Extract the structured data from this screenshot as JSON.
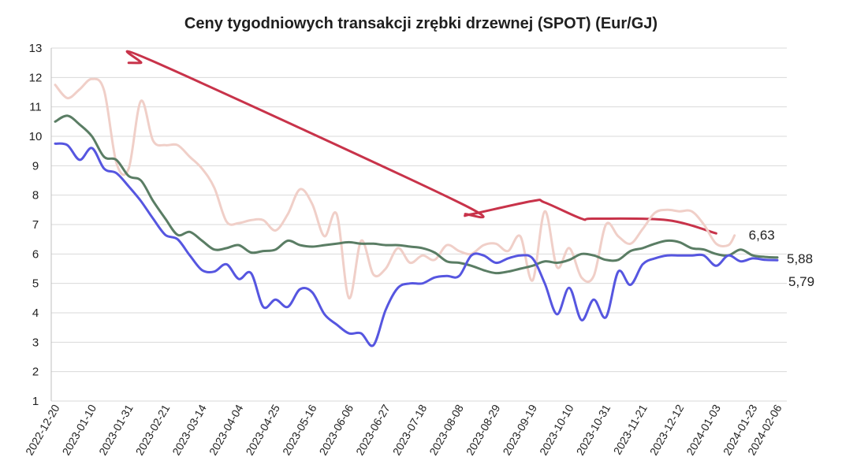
{
  "chart_data": {
    "type": "line",
    "title": "Ceny tygodniowych transakcji zrębki drzewnej (SPOT) (Eur/GJ)",
    "xlabel": "",
    "ylabel": "",
    "ylim": [
      1,
      13
    ],
    "yticks": [
      1,
      2,
      3,
      4,
      5,
      6,
      7,
      8,
      9,
      10,
      11,
      12,
      13
    ],
    "grid": true,
    "legend": "none",
    "x_tick_labels": [
      "2022-12-20",
      "2023-01-10",
      "2023-01-31",
      "2023-02-21",
      "2023-03-14",
      "2023-04-04",
      "2023-04-25",
      "2023-05-16",
      "2023-06-06",
      "2023-06-27",
      "2023-07-18",
      "2023-08-08",
      "2023-08-29",
      "2023-09-19",
      "2023-10-10",
      "2023-10-31",
      "2023-11-21",
      "2023-12-12",
      "2024-01-03",
      "2024-01-23",
      "2024-02-06"
    ],
    "x_tick_positions": [
      0,
      3,
      6,
      9,
      12,
      15,
      18,
      21,
      24,
      27,
      30,
      33,
      36,
      39,
      42,
      45,
      48,
      51,
      54,
      57,
      59
    ],
    "series": [
      {
        "color": "#c8334a",
        "width": 3,
        "end_label": "",
        "points": [
          [
            6,
            12.5
          ],
          [
            7,
            12.5
          ],
          [
            8,
            12.55
          ],
          [
            33,
            7.75
          ],
          [
            33.5,
            7.35
          ],
          [
            34,
            7.35
          ],
          [
            39,
            7.8
          ],
          [
            40,
            7.75
          ],
          [
            43,
            7.2
          ],
          [
            44,
            7.2
          ],
          [
            50,
            7.15
          ],
          [
            54,
            6.7
          ]
        ]
      },
      {
        "color": "#f0cfc8",
        "width": 3,
        "end_label": "6,63",
        "points": [
          [
            0,
            11.75
          ],
          [
            1,
            11.3
          ],
          [
            2,
            11.6
          ],
          [
            3,
            11.95
          ],
          [
            4,
            11.55
          ],
          [
            5,
            9.1
          ],
          [
            6,
            8.9
          ],
          [
            7,
            11.2
          ],
          [
            8,
            9.85
          ],
          [
            9,
            9.7
          ],
          [
            10,
            9.7
          ],
          [
            11,
            9.3
          ],
          [
            12,
            8.9
          ],
          [
            13,
            8.25
          ],
          [
            14,
            7.1
          ],
          [
            15,
            7.05
          ],
          [
            16,
            7.15
          ],
          [
            17,
            7.15
          ],
          [
            18,
            6.8
          ],
          [
            19,
            7.35
          ],
          [
            20,
            8.2
          ],
          [
            21,
            7.7
          ],
          [
            22,
            6.6
          ],
          [
            23,
            7.35
          ],
          [
            24,
            4.5
          ],
          [
            25,
            6.45
          ],
          [
            26,
            5.3
          ],
          [
            27,
            5.5
          ],
          [
            28,
            6.2
          ],
          [
            29,
            5.7
          ],
          [
            30,
            5.95
          ],
          [
            31,
            5.8
          ],
          [
            32,
            6.3
          ],
          [
            33,
            6.1
          ],
          [
            34,
            6.0
          ],
          [
            35,
            6.3
          ],
          [
            36,
            6.35
          ],
          [
            37,
            6.1
          ],
          [
            38,
            6.6
          ],
          [
            39,
            5.1
          ],
          [
            40,
            7.45
          ],
          [
            41,
            5.55
          ],
          [
            42,
            6.2
          ],
          [
            43,
            5.2
          ],
          [
            44,
            5.25
          ],
          [
            45,
            7.0
          ],
          [
            46,
            6.6
          ],
          [
            47,
            6.35
          ],
          [
            48,
            6.85
          ],
          [
            49,
            7.4
          ],
          [
            50,
            7.5
          ],
          [
            51,
            7.45
          ],
          [
            52,
            7.45
          ],
          [
            53,
            7.0
          ],
          [
            54,
            6.35
          ],
          [
            55,
            6.3
          ],
          [
            55.5,
            6.63
          ]
        ]
      },
      {
        "color": "#5a7d64",
        "width": 3,
        "end_label": "5,88",
        "points": [
          [
            0,
            10.5
          ],
          [
            1,
            10.7
          ],
          [
            2,
            10.4
          ],
          [
            3,
            10.0
          ],
          [
            4,
            9.3
          ],
          [
            5,
            9.2
          ],
          [
            6,
            8.65
          ],
          [
            7,
            8.5
          ],
          [
            8,
            7.8
          ],
          [
            9,
            7.2
          ],
          [
            10,
            6.65
          ],
          [
            11,
            6.75
          ],
          [
            12,
            6.45
          ],
          [
            13,
            6.15
          ],
          [
            14,
            6.2
          ],
          [
            15,
            6.3
          ],
          [
            16,
            6.05
          ],
          [
            17,
            6.1
          ],
          [
            18,
            6.15
          ],
          [
            19,
            6.45
          ],
          [
            20,
            6.3
          ],
          [
            21,
            6.25
          ],
          [
            22,
            6.3
          ],
          [
            23,
            6.35
          ],
          [
            24,
            6.4
          ],
          [
            25,
            6.35
          ],
          [
            26,
            6.35
          ],
          [
            27,
            6.3
          ],
          [
            28,
            6.3
          ],
          [
            29,
            6.25
          ],
          [
            30,
            6.2
          ],
          [
            31,
            6.05
          ],
          [
            32,
            5.75
          ],
          [
            33,
            5.7
          ],
          [
            34,
            5.6
          ],
          [
            35,
            5.45
          ],
          [
            36,
            5.35
          ],
          [
            37,
            5.4
          ],
          [
            38,
            5.5
          ],
          [
            39,
            5.6
          ],
          [
            40,
            5.75
          ],
          [
            41,
            5.7
          ],
          [
            42,
            5.8
          ],
          [
            43,
            6.0
          ],
          [
            44,
            5.95
          ],
          [
            45,
            5.8
          ],
          [
            46,
            5.8
          ],
          [
            47,
            6.1
          ],
          [
            48,
            6.2
          ],
          [
            49,
            6.35
          ],
          [
            50,
            6.45
          ],
          [
            51,
            6.4
          ],
          [
            52,
            6.2
          ],
          [
            53,
            6.15
          ],
          [
            54,
            6.0
          ],
          [
            55,
            5.95
          ],
          [
            56,
            6.15
          ],
          [
            57,
            5.95
          ],
          [
            58,
            5.9
          ],
          [
            59,
            5.88
          ]
        ]
      },
      {
        "color": "#5656e0",
        "width": 3,
        "end_label": "5,79",
        "points": [
          [
            0,
            9.75
          ],
          [
            1,
            9.7
          ],
          [
            2,
            9.2
          ],
          [
            3,
            9.6
          ],
          [
            4,
            8.9
          ],
          [
            5,
            8.75
          ],
          [
            6,
            8.3
          ],
          [
            7,
            7.8
          ],
          [
            8,
            7.2
          ],
          [
            9,
            6.65
          ],
          [
            10,
            6.5
          ],
          [
            11,
            5.95
          ],
          [
            12,
            5.45
          ],
          [
            13,
            5.4
          ],
          [
            14,
            5.65
          ],
          [
            15,
            5.15
          ],
          [
            16,
            5.35
          ],
          [
            17,
            4.2
          ],
          [
            18,
            4.45
          ],
          [
            19,
            4.2
          ],
          [
            20,
            4.8
          ],
          [
            21,
            4.7
          ],
          [
            22,
            3.95
          ],
          [
            23,
            3.6
          ],
          [
            24,
            3.3
          ],
          [
            25,
            3.3
          ],
          [
            26,
            2.9
          ],
          [
            27,
            4.1
          ],
          [
            28,
            4.85
          ],
          [
            29,
            5.0
          ],
          [
            30,
            5.0
          ],
          [
            31,
            5.2
          ],
          [
            32,
            5.25
          ],
          [
            33,
            5.25
          ],
          [
            34,
            5.95
          ],
          [
            35,
            5.95
          ],
          [
            36,
            5.7
          ],
          [
            37,
            5.85
          ],
          [
            38,
            5.95
          ],
          [
            39,
            5.85
          ],
          [
            40,
            5.0
          ],
          [
            41,
            3.95
          ],
          [
            42,
            4.85
          ],
          [
            43,
            3.75
          ],
          [
            44,
            4.45
          ],
          [
            45,
            3.85
          ],
          [
            46,
            5.4
          ],
          [
            47,
            4.95
          ],
          [
            48,
            5.65
          ],
          [
            49,
            5.85
          ],
          [
            50,
            5.95
          ],
          [
            51,
            5.95
          ],
          [
            52,
            5.95
          ],
          [
            53,
            5.95
          ],
          [
            54,
            5.6
          ],
          [
            55,
            5.95
          ],
          [
            56,
            5.75
          ],
          [
            57,
            5.85
          ],
          [
            58,
            5.8
          ],
          [
            59,
            5.79
          ]
        ]
      }
    ]
  }
}
